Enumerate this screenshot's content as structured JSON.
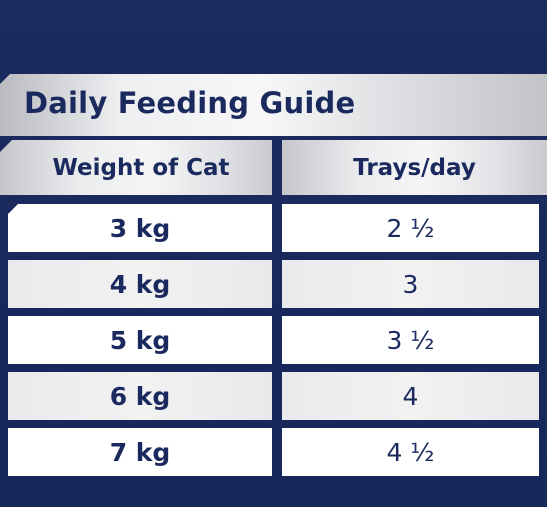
{
  "guide": {
    "title": "Daily Feeding Guide",
    "headers": {
      "weight": "Weight of Cat",
      "trays": "Trays/day"
    },
    "rows": [
      {
        "weight": "3 kg",
        "trays": "2 ½"
      },
      {
        "weight": "4 kg",
        "trays": "3"
      },
      {
        "weight": "5 kg",
        "trays": "3 ½"
      },
      {
        "weight": "6 kg",
        "trays": "4"
      },
      {
        "weight": "7 kg",
        "trays": "4 ½"
      }
    ]
  },
  "colors": {
    "background": "#1b2b5f",
    "text": "#1b2a5e",
    "banner_silver": "#eeeff1",
    "row_white": "#ffffff",
    "row_grey": "#eceded"
  }
}
